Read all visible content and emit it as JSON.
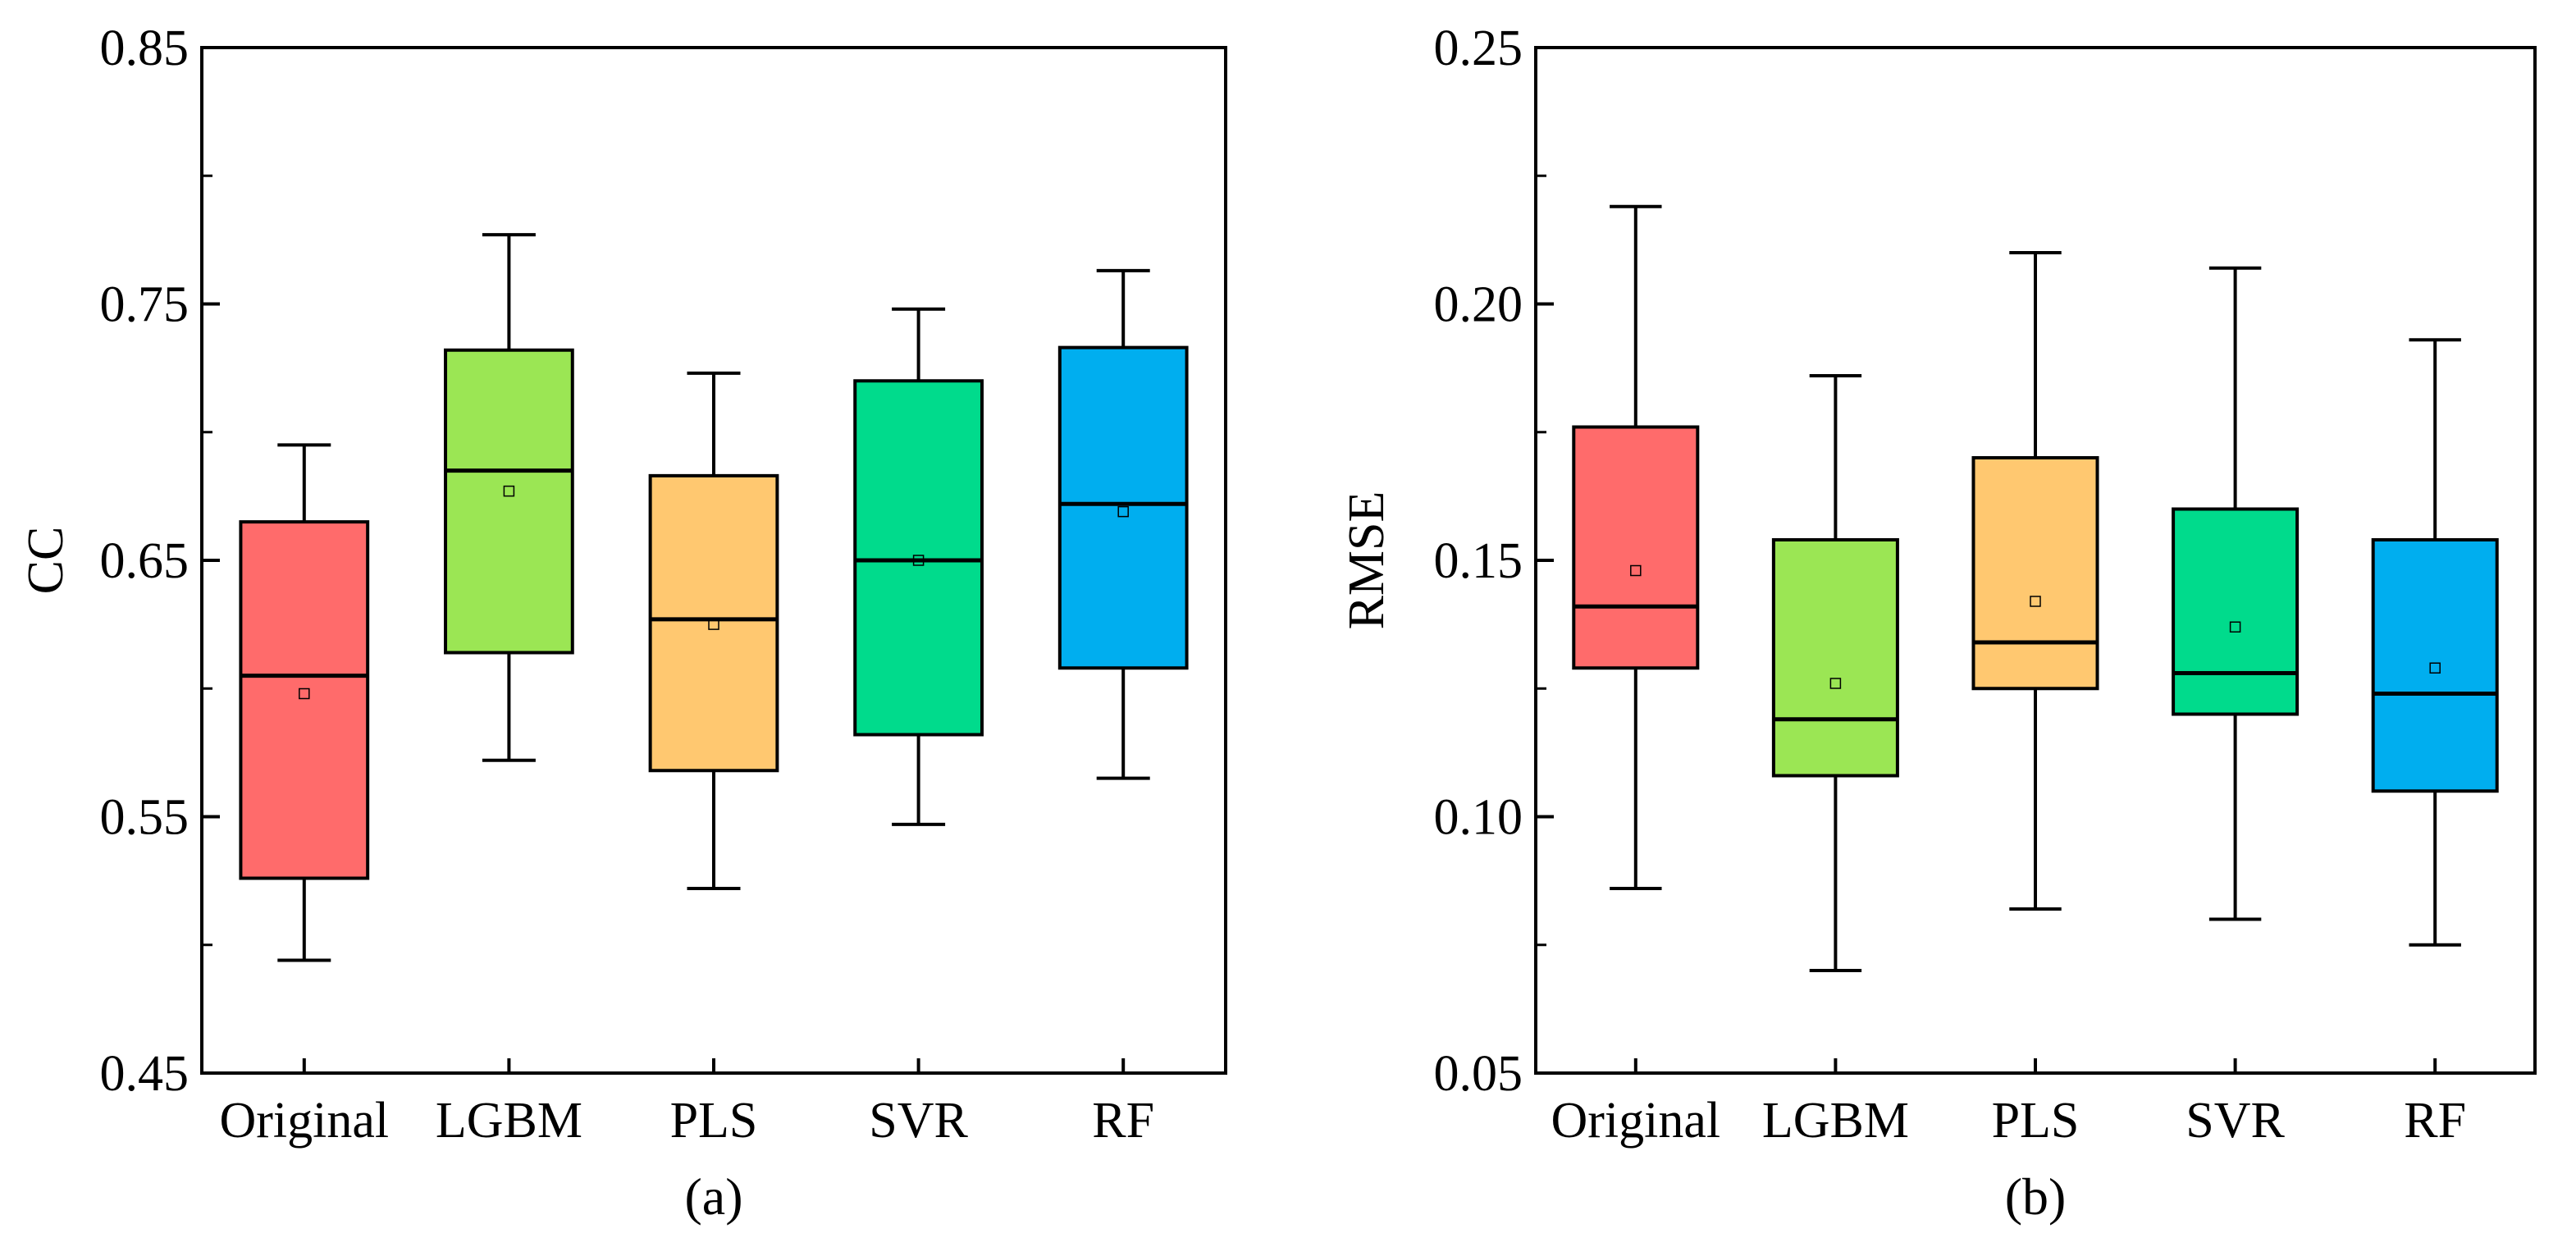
{
  "chart_data": [
    {
      "type": "box",
      "panel_label": "(a)",
      "xlabel": "",
      "ylabel": "CC",
      "ylim": [
        0.45,
        0.85
      ],
      "yticks": [
        "0.45",
        "0.55",
        "0.65",
        "0.75",
        "0.85"
      ],
      "categories": [
        "Original",
        "LGBM",
        "PLS",
        "SVR",
        "RF"
      ],
      "colors": [
        "#ff6b6b",
        "#9be654",
        "#ffc870",
        "#00db8c",
        "#00aeef"
      ],
      "boxes": [
        {
          "name": "Original",
          "min": 0.494,
          "q1": 0.526,
          "median": 0.605,
          "q3": 0.665,
          "max": 0.695,
          "mean": 0.598
        },
        {
          "name": "LGBM",
          "min": 0.572,
          "q1": 0.614,
          "median": 0.685,
          "q3": 0.732,
          "max": 0.777,
          "mean": 0.677
        },
        {
          "name": "PLS",
          "min": 0.522,
          "q1": 0.568,
          "median": 0.627,
          "q3": 0.683,
          "max": 0.723,
          "mean": 0.625
        },
        {
          "name": "SVR",
          "min": 0.547,
          "q1": 0.582,
          "median": 0.65,
          "q3": 0.72,
          "max": 0.748,
          "mean": 0.65
        },
        {
          "name": "RF",
          "min": 0.565,
          "q1": 0.608,
          "median": 0.672,
          "q3": 0.733,
          "max": 0.763,
          "mean": 0.669
        }
      ]
    },
    {
      "type": "box",
      "panel_label": "(b)",
      "xlabel": "",
      "ylabel": "RMSE",
      "ylim": [
        0.05,
        0.25
      ],
      "yticks": [
        "0.05",
        "0.10",
        "0.15",
        "0.20",
        "0.25"
      ],
      "categories": [
        "Original",
        "LGBM",
        "PLS",
        "SVR",
        "RF"
      ],
      "colors": [
        "#ff6b6b",
        "#9be654",
        "#ffc870",
        "#00db8c",
        "#00aeef"
      ],
      "boxes": [
        {
          "name": "Original",
          "min": 0.086,
          "q1": 0.129,
          "median": 0.141,
          "q3": 0.176,
          "max": 0.219,
          "mean": 0.148
        },
        {
          "name": "LGBM",
          "min": 0.07,
          "q1": 0.108,
          "median": 0.119,
          "q3": 0.154,
          "max": 0.186,
          "mean": 0.126
        },
        {
          "name": "PLS",
          "min": 0.082,
          "q1": 0.125,
          "median": 0.134,
          "q3": 0.17,
          "max": 0.21,
          "mean": 0.142
        },
        {
          "name": "SVR",
          "min": 0.08,
          "q1": 0.12,
          "median": 0.128,
          "q3": 0.16,
          "max": 0.207,
          "mean": 0.137
        },
        {
          "name": "RF",
          "min": 0.075,
          "q1": 0.105,
          "median": 0.124,
          "q3": 0.154,
          "max": 0.193,
          "mean": 0.129
        }
      ]
    }
  ]
}
